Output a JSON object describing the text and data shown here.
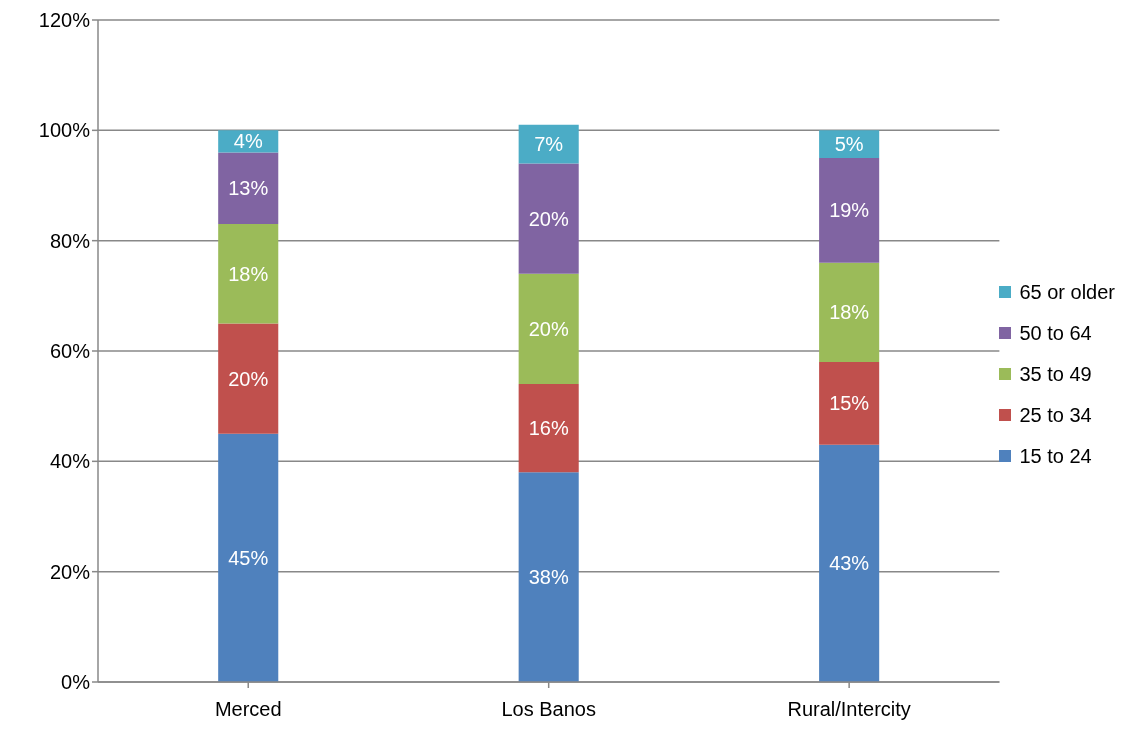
{
  "chart_data": {
    "type": "bar",
    "stacked": true,
    "categories": [
      "Merced",
      "Los Banos",
      "Rural/Intercity"
    ],
    "series": [
      {
        "name": "15 to 24",
        "color": "#4f81bd",
        "values": [
          45,
          38,
          43
        ],
        "value_labels": [
          "45%",
          "38%",
          "43%"
        ]
      },
      {
        "name": "25 to 34",
        "color": "#c0504d",
        "values": [
          20,
          16,
          15
        ],
        "value_labels": [
          "20%",
          "16%",
          "15%"
        ]
      },
      {
        "name": "35 to 49",
        "color": "#9bbb59",
        "values": [
          18,
          20,
          18
        ],
        "value_labels": [
          "18%",
          "20%",
          "18%"
        ]
      },
      {
        "name": "50 to 64",
        "color": "#8064a2",
        "values": [
          13,
          20,
          19
        ],
        "value_labels": [
          "13%",
          "20%",
          "19%"
        ]
      },
      {
        "name": "65 or older",
        "color": "#4bacc6",
        "values": [
          4,
          7,
          5
        ],
        "value_labels": [
          "4%",
          "7%",
          "5%"
        ]
      }
    ],
    "ylim": [
      0,
      120
    ],
    "yticks": [
      {
        "value": 0,
        "label": "0%"
      },
      {
        "value": 20,
        "label": "20%"
      },
      {
        "value": 40,
        "label": "40%"
      },
      {
        "value": 60,
        "label": "60%"
      },
      {
        "value": 80,
        "label": "80%"
      },
      {
        "value": 100,
        "label": "100%"
      },
      {
        "value": 120,
        "label": "120%"
      }
    ],
    "grid": "y",
    "legend": "right"
  }
}
